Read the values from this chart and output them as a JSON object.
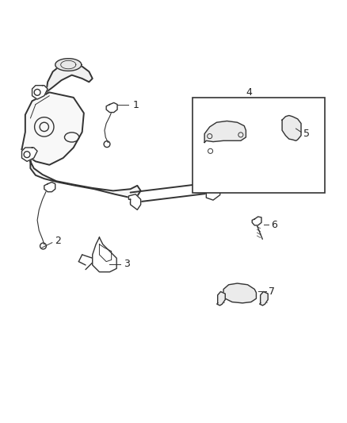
{
  "bg_color": "#ffffff",
  "line_color": "#333333",
  "label_color": "#222222",
  "fig_width": 4.38,
  "fig_height": 5.33,
  "dpi": 100
}
